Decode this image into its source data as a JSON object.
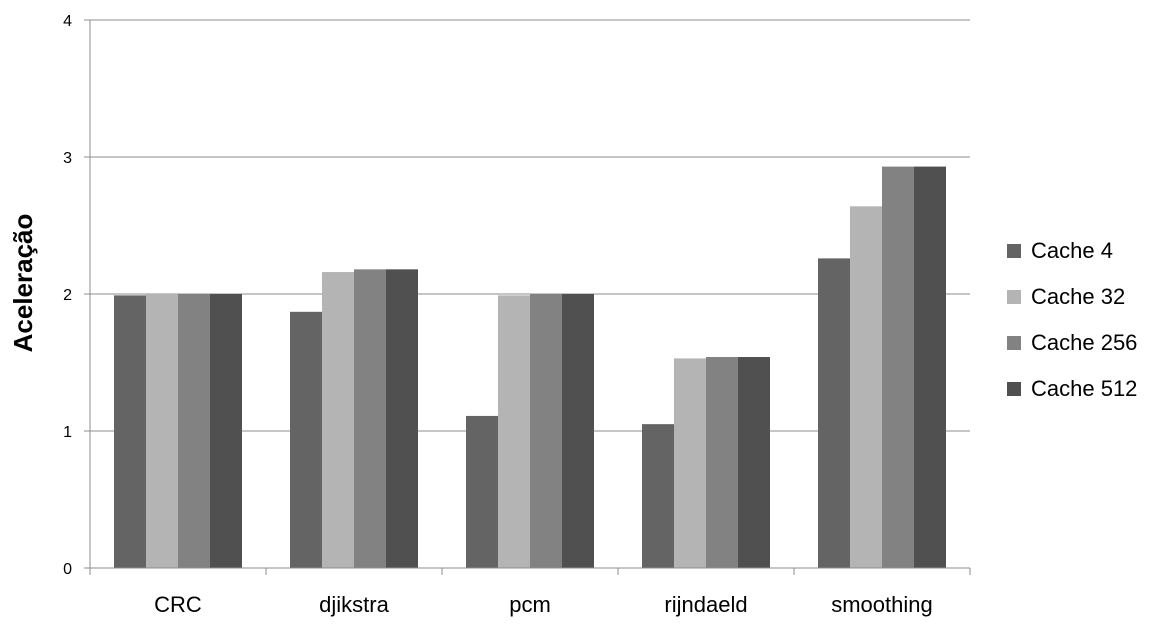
{
  "chart_data": {
    "type": "bar",
    "title": "",
    "xlabel": "",
    "ylabel": "Aceleração",
    "ylim": [
      0,
      4
    ],
    "yticks": [
      0,
      1,
      2,
      3,
      4
    ],
    "grid": true,
    "legend_position": "right",
    "categories": [
      "CRC",
      "djikstra",
      "pcm",
      "rijndaeld",
      "smoothing"
    ],
    "series": [
      {
        "name": "Cache 4",
        "color": "#646464",
        "values": [
          1.99,
          1.87,
          1.11,
          1.05,
          2.26
        ]
      },
      {
        "name": "Cache 32",
        "color": "#b4b4b4",
        "values": [
          2.0,
          2.16,
          1.99,
          1.53,
          2.64
        ]
      },
      {
        "name": "Cache 256",
        "color": "#828282",
        "values": [
          2.0,
          2.18,
          2.0,
          1.54,
          2.93
        ]
      },
      {
        "name": "Cache 512",
        "color": "#505050",
        "values": [
          2.0,
          2.18,
          2.0,
          1.54,
          2.93
        ]
      }
    ]
  }
}
